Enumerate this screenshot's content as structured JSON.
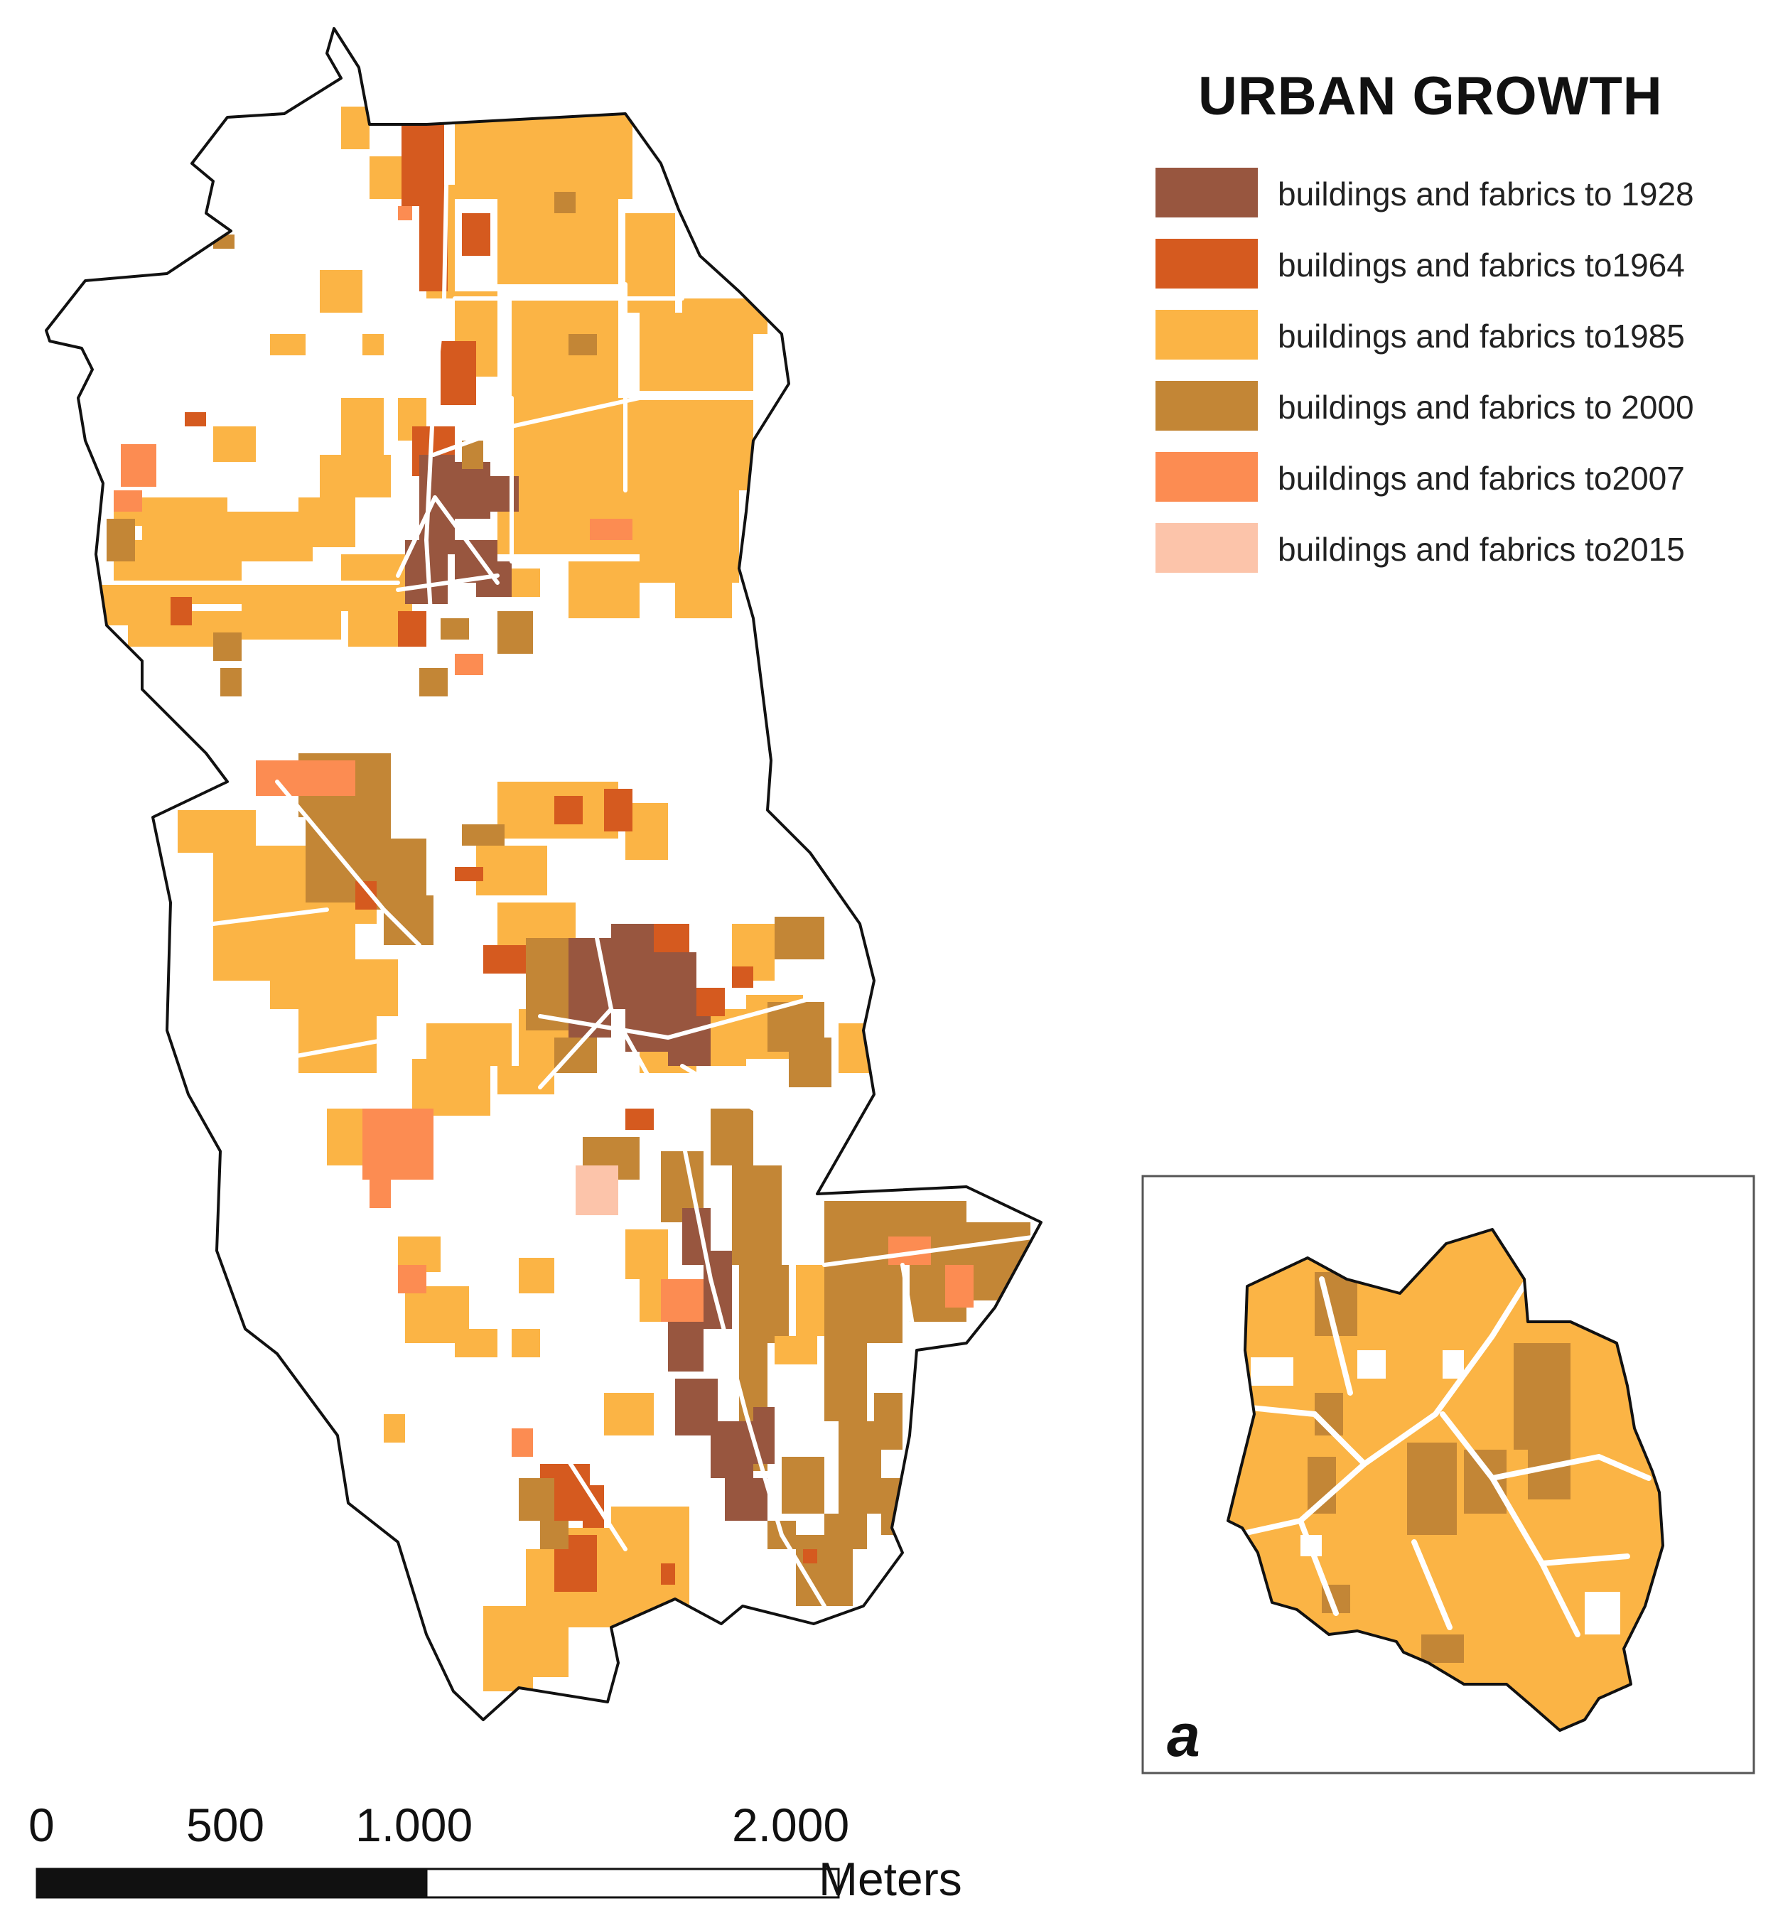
{
  "map": {
    "legend_title": "URBAN GROWTH",
    "legend": [
      {
        "label": "buildings and fabrics to 1928",
        "color": "#98563f"
      },
      {
        "label": "buildings and fabrics to1964",
        "color": "#d55a1f"
      },
      {
        "label": "buildings and fabrics to1985",
        "color": "#fbb445"
      },
      {
        "label": "buildings and fabrics to 2000",
        "color": "#c38636"
      },
      {
        "label": "buildings and fabrics to2007",
        "color": "#fc8c52"
      },
      {
        "label": "buildings and fabrics to2015",
        "color": "#fcc4aa"
      }
    ],
    "scalebar": {
      "tick_labels": [
        "0",
        "500",
        "1.000",
        "2.000"
      ],
      "units": "Meters"
    },
    "inset_label": "a",
    "colors": {
      "boundary": "#111111",
      "background": "#ffffff",
      "road": "#ffffff"
    }
  }
}
